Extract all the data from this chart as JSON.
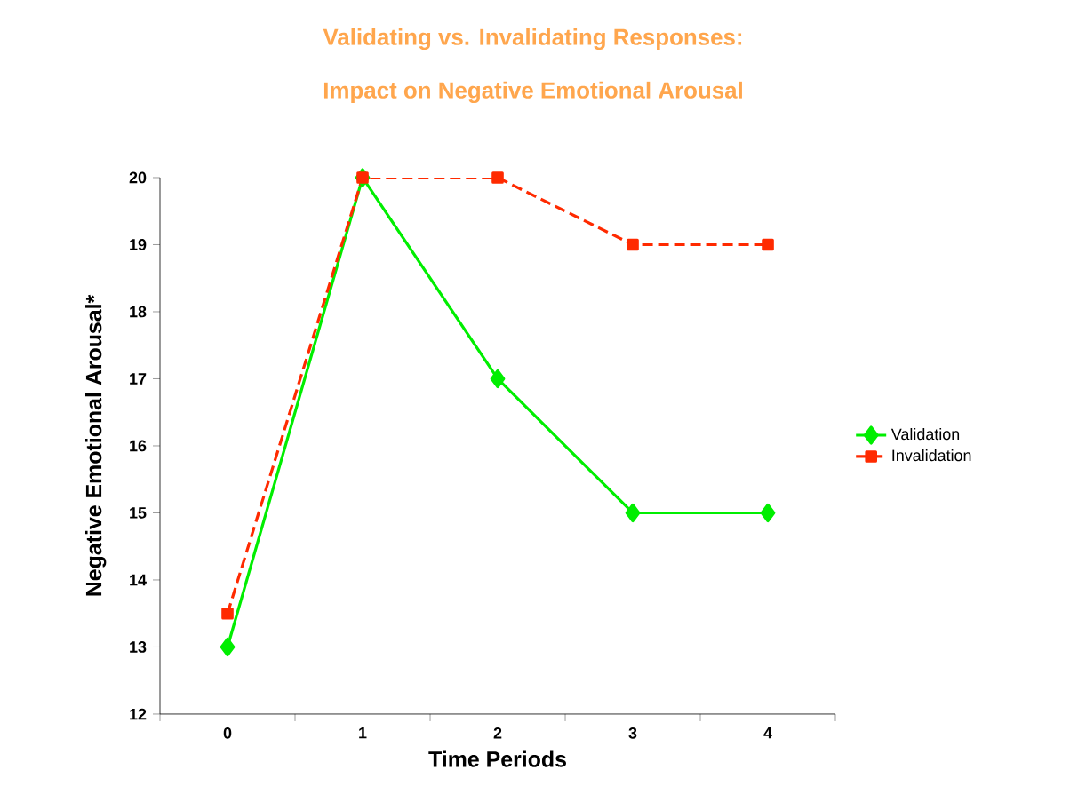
{
  "chart_data": {
    "type": "line",
    "title": "Validating vs. Invalidating Responses:",
    "subtitle": "Impact on Negative Emotional Arousal",
    "xlabel": "Time Periods",
    "ylabel": "Negative Emotional Arousal*",
    "categories": [
      "0",
      "1",
      "2",
      "3",
      "4"
    ],
    "series": [
      {
        "name": "Validation",
        "color": "#00ee00",
        "values": [
          13,
          20,
          17,
          15,
          15
        ],
        "marker": "diamond",
        "line_style": "solid"
      },
      {
        "name": "Invalidation",
        "color": "#ff2a00",
        "values": [
          13.5,
          20,
          20,
          19,
          19
        ],
        "marker": "square",
        "line_style": "dashed"
      }
    ],
    "ylim": [
      12,
      20
    ],
    "yticks": [
      12,
      13,
      14,
      15,
      16,
      17,
      18,
      19,
      20
    ],
    "grid": false,
    "legend": "right"
  }
}
